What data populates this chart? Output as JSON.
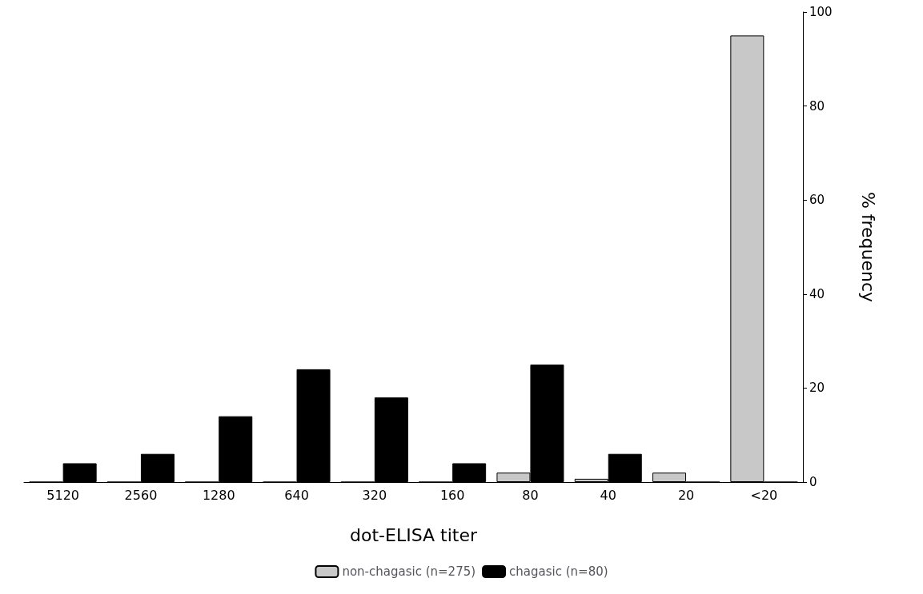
{
  "chart_data": {
    "type": "bar",
    "xlabel": "dot-ELISA titer",
    "ylabel": "% frequency",
    "categories": [
      "5120",
      "2560",
      "1280",
      "640",
      "320",
      "160",
      "80",
      "40",
      "20",
      "<20"
    ],
    "series": [
      {
        "name": "non-chagasic (n=275)",
        "color": "#c8c8c8",
        "values": [
          0,
          0,
          0,
          0,
          0,
          0,
          2,
          0.7,
          2,
          95
        ]
      },
      {
        "name": "chagasic (n=80)",
        "color": "#000000",
        "values": [
          4,
          6,
          14,
          24,
          18,
          4,
          25,
          6,
          0,
          0
        ]
      }
    ],
    "ylim": [
      0,
      100
    ],
    "yticks": [
      0,
      20,
      40,
      60,
      80,
      100
    ],
    "grid": false,
    "legend": "bottom"
  }
}
